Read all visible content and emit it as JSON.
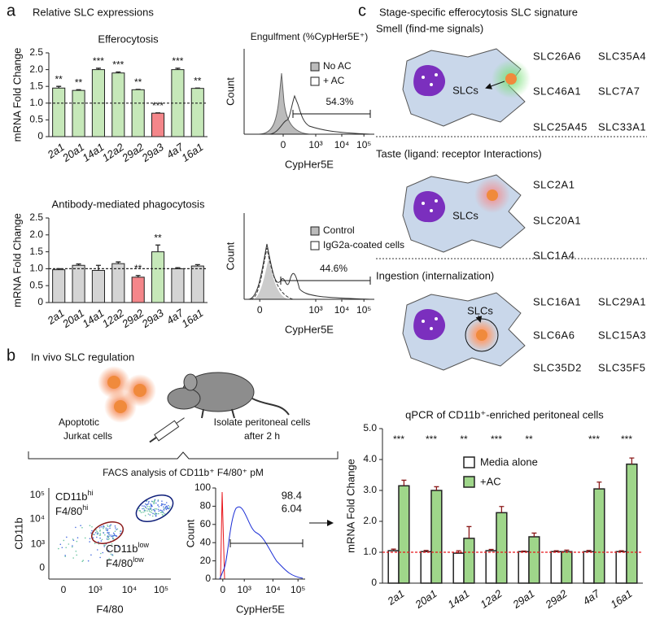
{
  "labels": {
    "panel_a": "a",
    "panel_a_title": "Relative SLC expressions",
    "panel_b": "b",
    "panel_b_title": "In vivo SLC regulation",
    "apoptotic": [
      "Apoptotic",
      "Jurkat cells"
    ],
    "isolate": [
      "Isolate peritoneal cells",
      "after 2 h"
    ],
    "facs": "FACS analysis of CD11b⁺ F4/80⁺ pM",
    "panel_c": "c",
    "panel_c_title": "Stage-specific efferocytosis SLC signature",
    "cell_label": "SLCs"
  },
  "signature": [
    {
      "title": "Smell (find-me signals)",
      "genes": [
        {
          "name": "SLC26A6",
          "color": "#e8161b"
        },
        {
          "name": "SLC35A4",
          "color": "#e8161b"
        },
        {
          "name": "SLC46A1",
          "color": "#e8161b"
        },
        {
          "name": "SLC7A7",
          "color": "#e8161b"
        },
        {
          "name": "SLC25A45",
          "color": "#1c2fd6"
        },
        {
          "name": "SLC33A1",
          "color": "#1c2fd6"
        }
      ]
    },
    {
      "title": "Taste (ligand: receptor Interactions)",
      "genes": [
        {
          "name": "SLC2A1",
          "color": "#e8161b"
        },
        {
          "name": "SLC20A1",
          "color": "#e8161b"
        },
        {
          "name": "SLC1A4",
          "color": "#1c2fd6"
        }
      ]
    },
    {
      "title": "Ingestion (internalization)",
      "genes": [
        {
          "name": "SLC16A1",
          "color": "#e8161b"
        },
        {
          "name": "SLC29A1",
          "color": "#e8161b"
        },
        {
          "name": "SLC6A6",
          "color": "#e8161b"
        },
        {
          "name": "SLC15A3",
          "color": "#1c2fd6"
        },
        {
          "name": "SLC35D2",
          "color": "#1c2fd6"
        },
        {
          "name": "SLC35F5",
          "color": "#1c2fd6"
        }
      ]
    }
  ],
  "chart_data": [
    {
      "type": "bar",
      "title": "Efferocytosis",
      "y_label": "mRNA Fold Change",
      "categories": [
        "2a1",
        "20a1",
        "14a1",
        "12a2",
        "29a2",
        "29a3",
        "4a7",
        "16a1"
      ],
      "values": [
        1.45,
        1.38,
        2.0,
        1.9,
        1.4,
        0.7,
        2.0,
        1.44
      ],
      "errors": [
        0.05,
        0.02,
        0.04,
        0.03,
        0.01,
        0.01,
        0.04,
        0.01
      ],
      "colors": [
        "#c6e8b9",
        "#c6e8b9",
        "#c6e8b9",
        "#c6e8b9",
        "#c6e8b9",
        "#f4868a",
        "#c6e8b9",
        "#c6e8b9"
      ],
      "error_color": "#222",
      "significance": [
        "**",
        "**",
        "***",
        "***",
        "**",
        "***",
        "***",
        "**"
      ],
      "ylim": [
        0,
        2.5
      ],
      "yticks": [
        0,
        0.5,
        {
          "value": 1,
          "label": "1.0"
        },
        1.5,
        {
          "value": 2,
          "label": "2.0"
        },
        2.5
      ],
      "reference_line": 1,
      "reference_color": "#222"
    },
    {
      "type": "bar",
      "title": "Antibody-mediated phagocytosis",
      "y_label": "mRNA Fold Change",
      "categories": [
        "2a1",
        "20a1",
        "14a1",
        "12a2",
        "29a2",
        "29a3",
        "4a7",
        "16a1"
      ],
      "values": [
        0.97,
        1.1,
        0.95,
        1.15,
        0.75,
        1.5,
        1.0,
        1.08
      ],
      "errors": [
        0.03,
        0.04,
        0.15,
        0.05,
        0.05,
        0.2,
        0.03,
        0.04
      ],
      "colors": [
        "#d4d4d4",
        "#d4d4d4",
        "#d4d4d4",
        "#d4d4d4",
        "#f4868a",
        "#c6e8b9",
        "#d4d4d4",
        "#d4d4d4"
      ],
      "error_color": "#222",
      "significance": [
        null,
        null,
        null,
        null,
        "**",
        "**",
        null,
        null
      ],
      "ylim": [
        0,
        2.5
      ],
      "yticks": [
        0,
        0.5,
        {
          "value": 1,
          "label": "1.0"
        },
        1.5,
        {
          "value": 2,
          "label": "2.0"
        },
        2.5
      ],
      "reference_line": 1,
      "reference_color": "#222"
    },
    {
      "type": "flow-histogram",
      "title": "Engulfment (%CypHer5E⁺)",
      "x_label": "CypHer5E",
      "y_label": "Count",
      "x_tick_labels": [
        "0",
        "10³",
        "10⁴",
        "10⁵"
      ],
      "legend": [
        {
          "name": "No AC",
          "color": "#bbbbbb"
        },
        {
          "name": "+ AC",
          "color": "#ffffff"
        }
      ],
      "gate_label": "54.3%"
    },
    {
      "type": "flow-histogram",
      "x_label": "CypHer5E",
      "y_label": "Count",
      "x_tick_labels": [
        "0",
        "10³",
        "10⁴",
        "10⁵"
      ],
      "legend": [
        {
          "name": "Control",
          "color": "#bbbbbb"
        },
        {
          "name": "IgG2a-coated cells",
          "color": "#ffffff"
        }
      ],
      "gate_label": "44.6%"
    },
    {
      "type": "dot-plot",
      "x_label": "F4/80",
      "y_label": "CD11b",
      "x_tick_labels": [
        "0",
        "10³",
        "10⁴",
        "10⁵"
      ],
      "y_tick_labels": [
        "0",
        "10³",
        "10⁴",
        "10⁵"
      ],
      "gates": [
        {
          "lines": [
            [
              "CD11b",
              "hi"
            ],
            [
              "F4/80",
              "hi"
            ]
          ],
          "color": "#1c2fd6"
        },
        {
          "lines": [
            [
              "CD11b",
              "low"
            ],
            [
              "F4/80",
              "low"
            ]
          ],
          "color": "#e8161b"
        }
      ]
    },
    {
      "type": "flow-histogram",
      "x_label": "CypHer5E",
      "y_label": "Count",
      "x_tick_labels": [
        "0",
        "10³",
        "10⁴",
        "10⁵"
      ],
      "ylim": [
        0,
        100
      ],
      "yticks": [
        0,
        20,
        40,
        60,
        80,
        100
      ],
      "gate_values": [
        {
          "value": 98.4,
          "color": "#1c2fd6"
        },
        {
          "value": 6.04,
          "color": "#e8161b"
        }
      ]
    },
    {
      "type": "grouped-bar",
      "title": "qPCR of CD11b⁺-enriched peritoneal cells",
      "y_label": "mRNA Fold Change",
      "categories": [
        "2a1",
        "20a1",
        "14a1",
        "12a2",
        "29a1",
        "29a2",
        "4a7",
        "16a1"
      ],
      "series": [
        {
          "name": "Media alone",
          "color": "#ffffff",
          "values": [
            1.05,
            1.02,
            0.97,
            1.05,
            1.02,
            1.02,
            1.02,
            1.02
          ],
          "errors": [
            0.05,
            0.04,
            0.08,
            0.04,
            0.02,
            0.03,
            0.04,
            0.03
          ]
        },
        {
          "name": "+AC",
          "color": "#9fd68a",
          "values": [
            3.15,
            3.0,
            1.45,
            2.28,
            1.5,
            1.02,
            3.05,
            3.85
          ],
          "errors": [
            0.18,
            0.12,
            0.38,
            0.2,
            0.12,
            0.05,
            0.22,
            0.2
          ]
        }
      ],
      "error_color": "#8b1a1a",
      "significance": [
        "***",
        "***",
        "**",
        "***",
        "**",
        null,
        "***",
        "***"
      ],
      "ylim": [
        0,
        5
      ],
      "yticks": [
        0,
        {
          "value": 1,
          "label": "1.0"
        },
        {
          "value": 2,
          "label": "2.0"
        },
        {
          "value": 3,
          "label": "3.0"
        },
        {
          "value": 4,
          "label": "4.0"
        },
        {
          "value": 5,
          "label": "5.0"
        }
      ],
      "reference_line": 1,
      "reference_color": "#e8161b"
    }
  ]
}
